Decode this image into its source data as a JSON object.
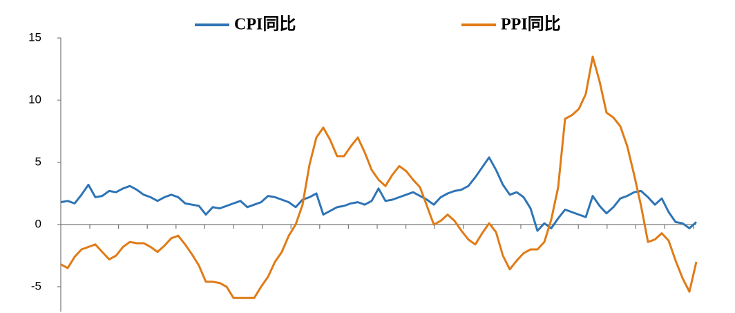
{
  "chart_data": {
    "type": "line",
    "series": [
      {
        "name": "CPI同比",
        "color": "#2e74b5",
        "values": [
          1.8,
          1.9,
          1.7,
          2.4,
          3.2,
          2.2,
          2.3,
          2.7,
          2.6,
          2.9,
          3.1,
          2.8,
          2.4,
          2.2,
          1.9,
          2.2,
          2.4,
          2.2,
          1.7,
          1.6,
          1.5,
          0.8,
          1.4,
          1.3,
          1.5,
          1.7,
          1.9,
          1.4,
          1.6,
          1.8,
          2.3,
          2.2,
          2.0,
          1.8,
          1.4,
          2.0,
          2.2,
          2.5,
          0.8,
          1.1,
          1.4,
          1.5,
          1.7,
          1.8,
          1.6,
          1.9,
          2.9,
          1.9,
          2.0,
          2.2,
          2.4,
          2.6,
          2.3,
          2.0,
          1.6,
          2.2,
          2.5,
          2.7,
          2.8,
          3.1,
          3.8,
          4.6,
          5.4,
          4.4,
          3.2,
          2.4,
          2.6,
          2.2,
          1.3,
          -0.5,
          0.1,
          -0.3,
          0.5,
          1.2,
          1.0,
          0.8,
          0.6,
          2.3,
          1.5,
          0.9,
          1.4,
          2.1,
          2.3,
          2.6,
          2.7,
          2.2,
          1.6,
          2.1,
          1.0,
          0.2,
          0.1,
          -0.3,
          0.2
        ]
      },
      {
        "name": "PPI同比",
        "color": "#e07b16",
        "values": [
          -3.2,
          -3.5,
          -2.6,
          -2.0,
          -1.8,
          -1.6,
          -2.2,
          -2.8,
          -2.5,
          -1.8,
          -1.4,
          -1.5,
          -1.5,
          -1.8,
          -2.2,
          -1.7,
          -1.1,
          -0.9,
          -1.6,
          -2.4,
          -3.3,
          -4.6,
          -4.6,
          -4.7,
          -5.0,
          -5.9,
          -5.9,
          -5.9,
          -5.9,
          -5.0,
          -4.2,
          -3.0,
          -2.2,
          -0.9,
          0.0,
          1.6,
          4.8,
          7.0,
          7.8,
          6.8,
          5.5,
          5.5,
          6.3,
          7.0,
          5.8,
          4.4,
          3.6,
          3.1,
          4.0,
          4.7,
          4.3,
          3.6,
          3.0,
          1.5,
          0.0,
          0.3,
          0.8,
          0.3,
          -0.5,
          -1.2,
          -1.6,
          -0.7,
          0.1,
          -0.6,
          -2.5,
          -3.6,
          -2.9,
          -2.3,
          -2.0,
          -2.0,
          -1.4,
          0.4,
          3.0,
          8.5,
          8.8,
          9.3,
          10.5,
          13.5,
          11.5,
          9.0,
          8.6,
          7.9,
          6.3,
          4.0,
          1.5,
          -1.4,
          -1.2,
          -0.7,
          -1.3,
          -2.9,
          -4.3,
          -5.4,
          -3.0
        ]
      }
    ],
    "ylim": [
      -7,
      15
    ],
    "yticks": [
      -5,
      0,
      5,
      10,
      15
    ],
    "grid": false
  }
}
